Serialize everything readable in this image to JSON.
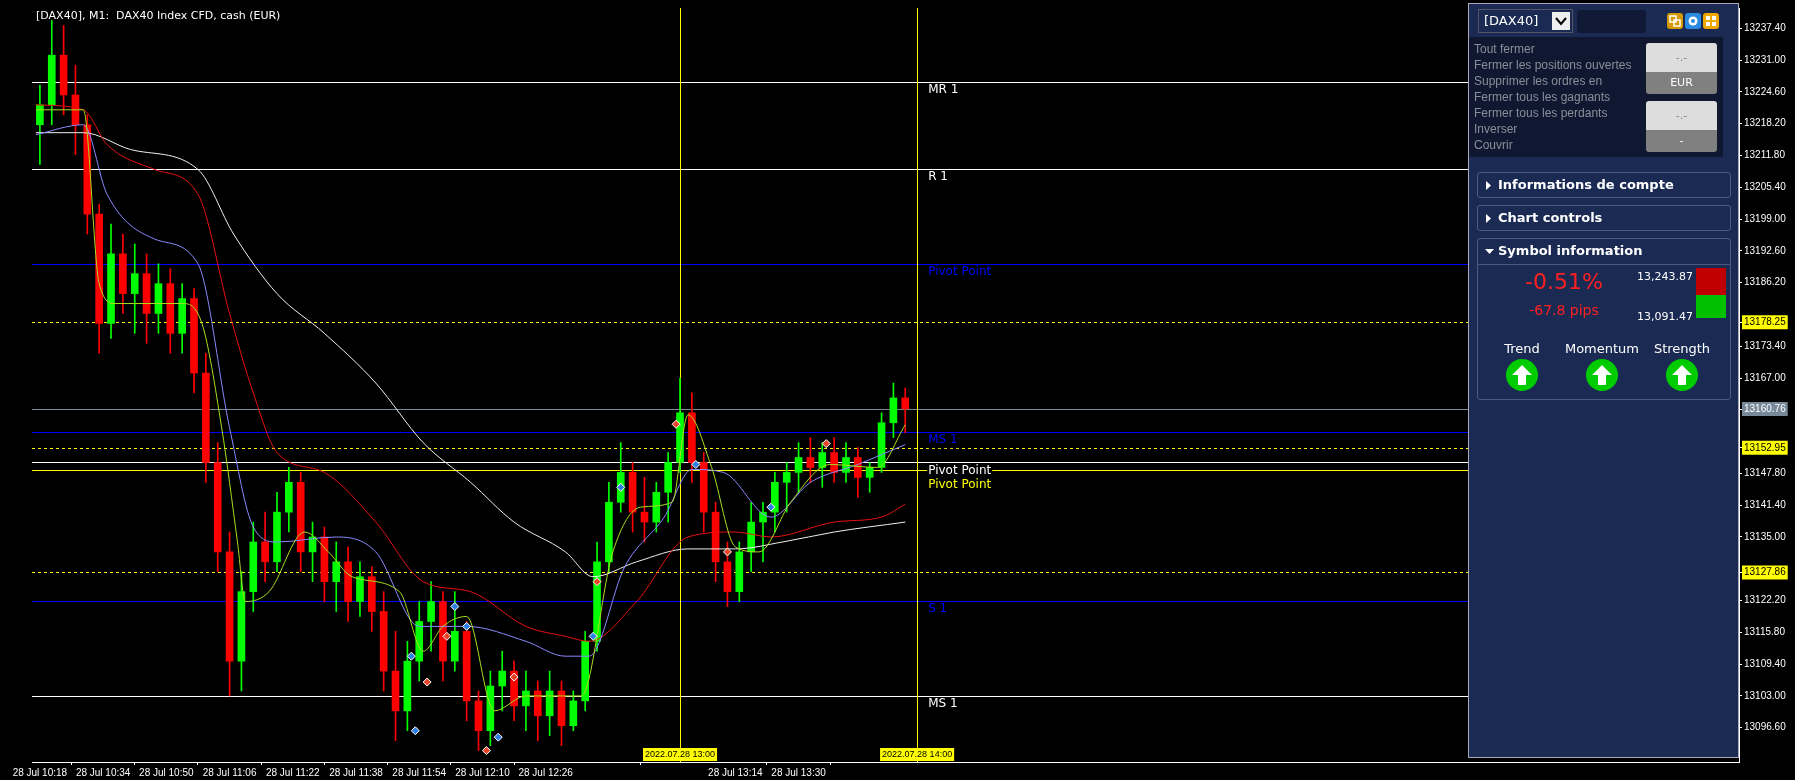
{
  "chart_data": [
    {
      "type": "candlestick",
      "title": "[DAX40], M1:  DAX40 Index CFD, cash (EUR)",
      "x": [
        "2022-07-28T10:18",
        "2022-07-28T10:21",
        "2022-07-28T10:24",
        "2022-07-28T10:27",
        "2022-07-28T10:30",
        "2022-07-28T10:33",
        "2022-07-28T10:36",
        "2022-07-28T10:39",
        "2022-07-28T10:42",
        "2022-07-28T10:45",
        "2022-07-28T10:48",
        "2022-07-28T10:51",
        "2022-07-28T10:54",
        "2022-07-28T10:57",
        "2022-07-28T11:00",
        "2022-07-28T11:03",
        "2022-07-28T11:06",
        "2022-07-28T11:09",
        "2022-07-28T11:12",
        "2022-07-28T11:15",
        "2022-07-28T11:18",
        "2022-07-28T11:21",
        "2022-07-28T11:24",
        "2022-07-28T11:27",
        "2022-07-28T11:30",
        "2022-07-28T11:33",
        "2022-07-28T11:36",
        "2022-07-28T11:39",
        "2022-07-28T11:42",
        "2022-07-28T11:45",
        "2022-07-28T11:48",
        "2022-07-28T11:51",
        "2022-07-28T11:54",
        "2022-07-28T11:57",
        "2022-07-28T12:00",
        "2022-07-28T12:03",
        "2022-07-28T12:06",
        "2022-07-28T12:09",
        "2022-07-28T12:12",
        "2022-07-28T12:15",
        "2022-07-28T12:18",
        "2022-07-28T12:21",
        "2022-07-28T12:24",
        "2022-07-28T12:27",
        "2022-07-28T12:30",
        "2022-07-28T12:33",
        "2022-07-28T12:36",
        "2022-07-28T12:39",
        "2022-07-28T12:42",
        "2022-07-28T12:45",
        "2022-07-28T12:48",
        "2022-07-28T12:51",
        "2022-07-28T12:54",
        "2022-07-28T12:57",
        "2022-07-28T13:00",
        "2022-07-28T13:03",
        "2022-07-28T13:06",
        "2022-07-28T13:09",
        "2022-07-28T13:12",
        "2022-07-28T13:15",
        "2022-07-28T13:18",
        "2022-07-28T13:21",
        "2022-07-28T13:24",
        "2022-07-28T13:27",
        "2022-07-28T13:30",
        "2022-07-28T13:33",
        "2022-07-28T13:36",
        "2022-07-28T13:39",
        "2022-07-28T13:42",
        "2022-07-28T13:45",
        "2022-07-28T13:48",
        "2022-07-28T13:51",
        "2022-07-28T13:54",
        "2022-07-28T13:57"
      ],
      "ohlc": [
        [
          13218,
          13226,
          13210,
          13222
        ],
        [
          13222,
          13239,
          13218,
          13232
        ],
        [
          13232,
          13238,
          13220,
          13224
        ],
        [
          13224,
          13230,
          13212,
          13218
        ],
        [
          13218,
          13220,
          13196,
          13200
        ],
        [
          13200,
          13202,
          13172,
          13178
        ],
        [
          13178,
          13198,
          13175,
          13192
        ],
        [
          13192,
          13196,
          13180,
          13184
        ],
        [
          13184,
          13194,
          13176,
          13188
        ],
        [
          13188,
          13192,
          13174,
          13180
        ],
        [
          13180,
          13190,
          13176,
          13186
        ],
        [
          13186,
          13189,
          13172,
          13176
        ],
        [
          13176,
          13186,
          13172,
          13183
        ],
        [
          13183,
          13185,
          13164,
          13168
        ],
        [
          13168,
          13172,
          13146,
          13150
        ],
        [
          13150,
          13154,
          13128,
          13132
        ],
        [
          13132,
          13136,
          13103,
          13110
        ],
        [
          13110,
          13128,
          13104,
          13124
        ],
        [
          13124,
          13138,
          13120,
          13134
        ],
        [
          13134,
          13140,
          13126,
          13130
        ],
        [
          13130,
          13144,
          13128,
          13140
        ],
        [
          13140,
          13149,
          13136,
          13146
        ],
        [
          13146,
          13148,
          13128,
          13132
        ],
        [
          13132,
          13138,
          13126,
          13135
        ],
        [
          13135,
          13137,
          13122,
          13126
        ],
        [
          13126,
          13134,
          13120,
          13130
        ],
        [
          13130,
          13133,
          13118,
          13122
        ],
        [
          13122,
          13130,
          13119,
          13127
        ],
        [
          13127,
          13129,
          13116,
          13120
        ],
        [
          13120,
          13124,
          13104,
          13108
        ],
        [
          13108,
          13116,
          13094,
          13100
        ],
        [
          13100,
          13114,
          13096,
          13110
        ],
        [
          13110,
          13122,
          13106,
          13118
        ],
        [
          13118,
          13126,
          13112,
          13122
        ],
        [
          13122,
          13124,
          13106,
          13110
        ],
        [
          13110,
          13124,
          13108,
          13116
        ],
        [
          13116,
          13118,
          13098,
          13102
        ],
        [
          13102,
          13104,
          13092,
          13096
        ],
        [
          13096,
          13108,
          13093,
          13105
        ],
        [
          13105,
          13112,
          13100,
          13108
        ],
        [
          13108,
          13110,
          13098,
          13101
        ],
        [
          13101,
          13108,
          13096,
          13104
        ],
        [
          13104,
          13106,
          13094,
          13099
        ],
        [
          13099,
          13108,
          13095,
          13104
        ],
        [
          13104,
          13106,
          13093,
          13097
        ],
        [
          13097,
          13104,
          13096,
          13102
        ],
        [
          13102,
          13116,
          13100,
          13114
        ],
        [
          13114,
          13134,
          13112,
          13130
        ],
        [
          13130,
          13146,
          13128,
          13142
        ],
        [
          13142,
          13154,
          13140,
          13148
        ],
        [
          13148,
          13150,
          13136,
          13140
        ],
        [
          13140,
          13147,
          13134,
          13138
        ],
        [
          13138,
          13146,
          13136,
          13144
        ],
        [
          13144,
          13152,
          13138,
          13150
        ],
        [
          13150,
          13167,
          13148,
          13160
        ],
        [
          13160,
          13164,
          13146,
          13150
        ],
        [
          13150,
          13152,
          13136,
          13140
        ],
        [
          13140,
          13142,
          13126,
          13130
        ],
        [
          13130,
          13134,
          13121,
          13124
        ],
        [
          13124,
          13134,
          13122,
          13132
        ],
        [
          13132,
          13142,
          13128,
          13138
        ],
        [
          13138,
          13142,
          13130,
          13140
        ],
        [
          13140,
          13148,
          13136,
          13146
        ],
        [
          13146,
          13150,
          13140,
          13148
        ],
        [
          13148,
          13154,
          13144,
          13151
        ],
        [
          13151,
          13155,
          13146,
          13149
        ],
        [
          13149,
          13154,
          13145,
          13152
        ],
        [
          13152,
          13155,
          13146,
          13148
        ],
        [
          13148,
          13154,
          13146,
          13151
        ],
        [
          13151,
          13153,
          13143,
          13147
        ],
        [
          13147,
          13150,
          13144,
          13149
        ],
        [
          13149,
          13160,
          13148,
          13158
        ],
        [
          13158,
          13166,
          13155,
          13163
        ],
        [
          13163,
          13165,
          13156,
          13160.8
        ]
      ],
      "colors": [
        "#00ff00",
        "#00ff00",
        "#ff0000",
        "#ff0000",
        "#ff0000",
        "#ff0000",
        "#00ff00",
        "#ff0000",
        "#00ff00",
        "#ff0000",
        "#00ff00",
        "#ff0000",
        "#00ff00",
        "#ff0000",
        "#ff0000",
        "#ff0000",
        "#ff0000",
        "#00ff00",
        "#00ff00",
        "#ff0000",
        "#00ff00",
        "#00ff00",
        "#ff0000",
        "#00ff00",
        "#ff0000",
        "#00ff00",
        "#ff0000",
        "#00ff00",
        "#ff0000",
        "#ff0000",
        "#ff0000",
        "#00ff00",
        "#00ff00",
        "#00ff00",
        "#ff0000",
        "#00ff00",
        "#ff0000",
        "#ff0000",
        "#00ff00",
        "#00ff00",
        "#ff0000",
        "#00ff00",
        "#ff0000",
        "#00ff00",
        "#ff0000",
        "#00ff00",
        "#00ff00",
        "#00ff00",
        "#00ff00",
        "#00ff00",
        "#ff0000",
        "#ff0000",
        "#00ff00",
        "#00ff00",
        "#00ff00",
        "#ff0000",
        "#ff0000",
        "#ff0000",
        "#ff0000",
        "#00ff00",
        "#00ff00",
        "#00ff00",
        "#00ff00",
        "#00ff00",
        "#00ff00",
        "#ff0000",
        "#00ff00",
        "#ff0000",
        "#00ff00",
        "#ff0000",
        "#00ff00",
        "#00ff00",
        "#00ff00",
        "#ff0000"
      ],
      "series": [
        {
          "type": "line",
          "color": "#a8e01e",
          "x": [
            "2022-07-28T10:17",
            "2022-07-28T10:29",
            "2022-07-28T10:33",
            "2022-07-28T10:37",
            "2022-07-28T10:54",
            "2022-07-28T10:59",
            "2022-07-28T11:04",
            "2022-07-28T11:08",
            "2022-07-28T11:10",
            "2022-07-28T11:16",
            "2022-07-28T11:25",
            "2022-07-28T11:31",
            "2022-07-28T11:37",
            "2022-07-28T11:49",
            "2022-07-28T11:55",
            "2022-07-28T12:00",
            "2022-07-28T12:06",
            "2022-07-28T12:13",
            "2022-07-28T12:21",
            "2022-07-28T12:35",
            "2022-07-28T12:43",
            "2022-07-28T12:50",
            "2022-07-28T12:58",
            "2022-07-28T13:02",
            "2022-07-28T13:08",
            "2022-07-28T13:14",
            "2022-07-28T13:20",
            "2022-07-28T13:28",
            "2022-07-28T13:38",
            "2022-07-28T13:50",
            "2022-07-28T13:57"
          ],
          "values": [
            13221,
            13221,
            13186,
            13182,
            13182,
            13178,
            13157,
            13134,
            13122,
            13124,
            13136,
            13132,
            13127,
            13124,
            13112,
            13117,
            13119,
            13100,
            13103,
            13103,
            13132,
            13141,
            13142,
            13159.6,
            13149,
            13133,
            13132,
            13142,
            13149.6,
            13149,
            13157.6
          ]
        },
        {
          "type": "line",
          "color": "#8a8aff",
          "x": [
            "2022-07-28T10:17",
            "2022-07-28T10:29",
            "2022-07-28T10:35",
            "2022-07-28T10:47",
            "2022-07-28T10:58",
            "2022-07-28T11:06",
            "2022-07-28T11:12",
            "2022-07-28T11:18",
            "2022-07-28T11:33",
            "2022-07-28T11:43",
            "2022-07-28T11:54",
            "2022-07-28T12:06",
            "2022-07-28T12:21",
            "2022-07-28T12:31",
            "2022-07-28T12:37",
            "2022-07-28T12:46",
            "2022-07-28T12:56",
            "2022-07-28T13:03",
            "2022-07-28T13:11",
            "2022-07-28T13:23",
            "2022-07-28T13:33",
            "2022-07-28T13:45",
            "2022-07-28T13:57"
          ],
          "values": [
            13216,
            13218,
            13204,
            13195,
            13190,
            13157,
            13137,
            13134,
            13135,
            13132,
            13117,
            13117,
            13114,
            13111,
            13111,
            13129,
            13139,
            13148.6,
            13148,
            13139,
            13146,
            13149.6,
            13153.6
          ]
        },
        {
          "type": "line",
          "color": "#e81010",
          "x": [
            "2022-07-28T10:17",
            "2022-07-28T10:29",
            "2022-07-28T10:35",
            "2022-07-28T10:47",
            "2022-07-28T10:58",
            "2022-07-28T11:06",
            "2022-07-28T11:12",
            "2022-07-28T11:18",
            "2022-07-28T11:30",
            "2022-07-28T11:43",
            "2022-07-28T11:55",
            "2022-07-28T12:07",
            "2022-07-28T12:21",
            "2022-07-28T12:31",
            "2022-07-28T12:37",
            "2022-07-28T12:49",
            "2022-07-28T13:02",
            "2022-07-28T13:14",
            "2022-07-28T13:23",
            "2022-07-28T13:39",
            "2022-07-28T13:51",
            "2022-07-28T13:57"
          ],
          "values": [
            13222,
            13221,
            13214,
            13209,
            13204,
            13180,
            13164,
            13152,
            13148,
            13138,
            13126,
            13124,
            13117,
            13115,
            13114,
            13122,
            13135,
            13136,
            13135,
            13138,
            13139,
            13141.6
          ]
        },
        {
          "type": "line",
          "color": "#f0f0f0",
          "x": [
            "2022-07-28T10:17",
            "2022-07-28T10:29",
            "2022-07-28T10:41",
            "2022-07-28T10:58",
            "2022-07-28T11:07",
            "2022-07-28T11:18",
            "2022-07-28T11:30",
            "2022-07-28T11:43",
            "2022-07-28T11:55",
            "2022-07-28T12:07",
            "2022-07-28T12:18",
            "2022-07-28T12:31",
            "2022-07-28T12:38",
            "2022-07-28T12:49",
            "2022-07-28T13:02",
            "2022-07-28T13:14",
            "2022-07-28T13:26",
            "2022-07-28T13:39",
            "2022-07-28T13:57"
          ],
          "values": [
            13216.4,
            13216.4,
            13213,
            13209,
            13196,
            13184,
            13176,
            13166,
            13154,
            13146,
            13138,
            13132,
            13127,
            13130,
            13132.6,
            13132.6,
            13134,
            13136,
            13138
          ]
        },
        {
          "type": "scatter",
          "marker": "diamond",
          "color": "#2f7fe0",
          "x": [
            "2022-07-28T11:52",
            "2022-07-28T11:53",
            "2022-07-28T12:03",
            "2022-07-28T12:06",
            "2022-07-28T12:14",
            "2022-07-28T12:38",
            "2022-07-28T12:45",
            "2022-07-28T13:04",
            "2022-07-28T13:23"
          ],
          "values": [
            13111,
            13096,
            13121,
            13117,
            13094.7,
            13115,
            13145,
            13149.6,
            13141
          ]
        },
        {
          "type": "scatter",
          "marker": "diamond",
          "color": "#e8442a",
          "x": [
            "2022-07-28T11:56",
            "2022-07-28T12:01",
            "2022-07-28T12:11",
            "2022-07-28T12:18",
            "2022-07-28T12:39",
            "2022-07-28T12:59",
            "2022-07-28T13:12",
            "2022-07-28T13:37"
          ],
          "values": [
            13105.8,
            13115,
            13092,
            13106.8,
            13126,
            13157.7,
            13132,
            13153.8
          ]
        }
      ],
      "xlim": [
        "2022-07-28T10:16",
        "2022-07-28T17:28"
      ],
      "xticks": [
        {
          "value": "2022-07-28T10:18",
          "label": "28 Jul 10:18"
        },
        {
          "value": "2022-07-28T10:34",
          "label": "28 Jul 10:34"
        },
        {
          "value": "2022-07-28T10:50",
          "label": "28 Jul 10:50"
        },
        {
          "value": "2022-07-28T11:06",
          "label": "28 Jul 11:06"
        },
        {
          "value": "2022-07-28T11:22",
          "label": "28 Jul 11:22"
        },
        {
          "value": "2022-07-28T11:38",
          "label": "28 Jul 11:38"
        },
        {
          "value": "2022-07-28T11:54",
          "label": "28 Jul 11:54"
        },
        {
          "value": "2022-07-28T12:10",
          "label": "28 Jul 12:10"
        },
        {
          "value": "2022-07-28T12:26",
          "label": "28 Jul 12:26"
        },
        {
          "value": "2022-07-28T13:14",
          "label": "28 Jul 13:14"
        },
        {
          "value": "2022-07-28T13:30",
          "label": "28 Jul 13:30"
        }
      ],
      "ylim": [
        13089.7,
        13241.5
      ],
      "yticks": [
        {
          "value": 13237.4,
          "label": "13237.40"
        },
        {
          "value": 13231,
          "label": "13231.00"
        },
        {
          "value": 13224.6,
          "label": "13224.60"
        },
        {
          "value": 13218.2,
          "label": "13218.20"
        },
        {
          "value": 13211.8,
          "label": "13211.80"
        },
        {
          "value": 13205.4,
          "label": "13205.40"
        },
        {
          "value": 13199,
          "label": "13199.00"
        },
        {
          "value": 13192.6,
          "label": "13192.60"
        },
        {
          "value": 13186.2,
          "label": "13186.20"
        },
        {
          "value": 13178.25,
          "label": "13178.25"
        },
        {
          "value": 13173.4,
          "label": "13173.40"
        },
        {
          "value": 13167,
          "label": "13167.00"
        },
        {
          "value": 13160.76,
          "label": "13160.76"
        },
        {
          "value": 13152.95,
          "label": "13152.95"
        },
        {
          "value": 13147.8,
          "label": "13147.80"
        },
        {
          "value": 13141.4,
          "label": "13141.40"
        },
        {
          "value": 13135,
          "label": "13135.00"
        },
        {
          "value": 13127.86,
          "label": "13127.86"
        },
        {
          "value": 13122.2,
          "label": "13122.20"
        },
        {
          "value": 13115.8,
          "label": "13115.80"
        },
        {
          "value": 13109.4,
          "label": "13109.40"
        },
        {
          "value": 13103,
          "label": "13103.00"
        },
        {
          "value": 13096.6,
          "label": "13096.60"
        }
      ],
      "ref_lines": [
        {
          "axis": "y",
          "value": 13226.6,
          "label": "MR 1",
          "color": "#ffffff"
        },
        {
          "axis": "y",
          "value": 13209.1,
          "label": "R 1",
          "color": "#ffffff"
        },
        {
          "axis": "y",
          "value": 13190.0,
          "label": "Pivot Point",
          "color": "#0000ff"
        },
        {
          "axis": "y",
          "value": 13178.25,
          "color": "#ffff00",
          "line_style": "dashed"
        },
        {
          "axis": "y",
          "value": 13160.76,
          "color": "#778899"
        },
        {
          "axis": "y",
          "value": 13156.1,
          "label": "MS 1",
          "color": "#0000ff"
        },
        {
          "axis": "y",
          "value": 13152.95,
          "color": "#ffff00",
          "line_style": "dashed"
        },
        {
          "axis": "y",
          "value": 13150.0,
          "label": "Pivot Point",
          "color": "#ffffff"
        },
        {
          "axis": "y",
          "value": 13148.4,
          "label": "Pivot Point",
          "color": "#ffff00"
        },
        {
          "axis": "y",
          "value": 13127.86,
          "color": "#ffff00",
          "line_style": "dashed"
        },
        {
          "axis": "y",
          "value": 13122.2,
          "label": "S 1",
          "color": "#0000ff"
        },
        {
          "axis": "y",
          "value": 13103.0,
          "label": "MS 1",
          "color": "#ffffff"
        },
        {
          "axis": "x",
          "value": "2022-07-28T13:00",
          "label": "2022.07.28 13:00",
          "color": "#ffff00"
        },
        {
          "axis": "x",
          "value": "2022-07-28T14:00",
          "label": "2022.07.28 14:00",
          "color": "#ffff00"
        }
      ]
    },
    {
      "type": "other",
      "annotations": [
        "[DAX40]",
        "Tout fermer",
        "Fermer les positions ouvertes",
        "Supprimer les ordres en",
        "Fermer tous les gagnants",
        "Fermer tous les perdants",
        "Inverser",
        "Couvrir",
        "-.-",
        "EUR",
        "-.-",
        "-",
        "Informations de compte",
        "Chart controls",
        "Symbol information",
        "-0.51%",
        "-67.8 pips",
        "13,243.87",
        "13,091.47",
        "Trend",
        "Momentum",
        "Strength"
      ]
    }
  ]
}
